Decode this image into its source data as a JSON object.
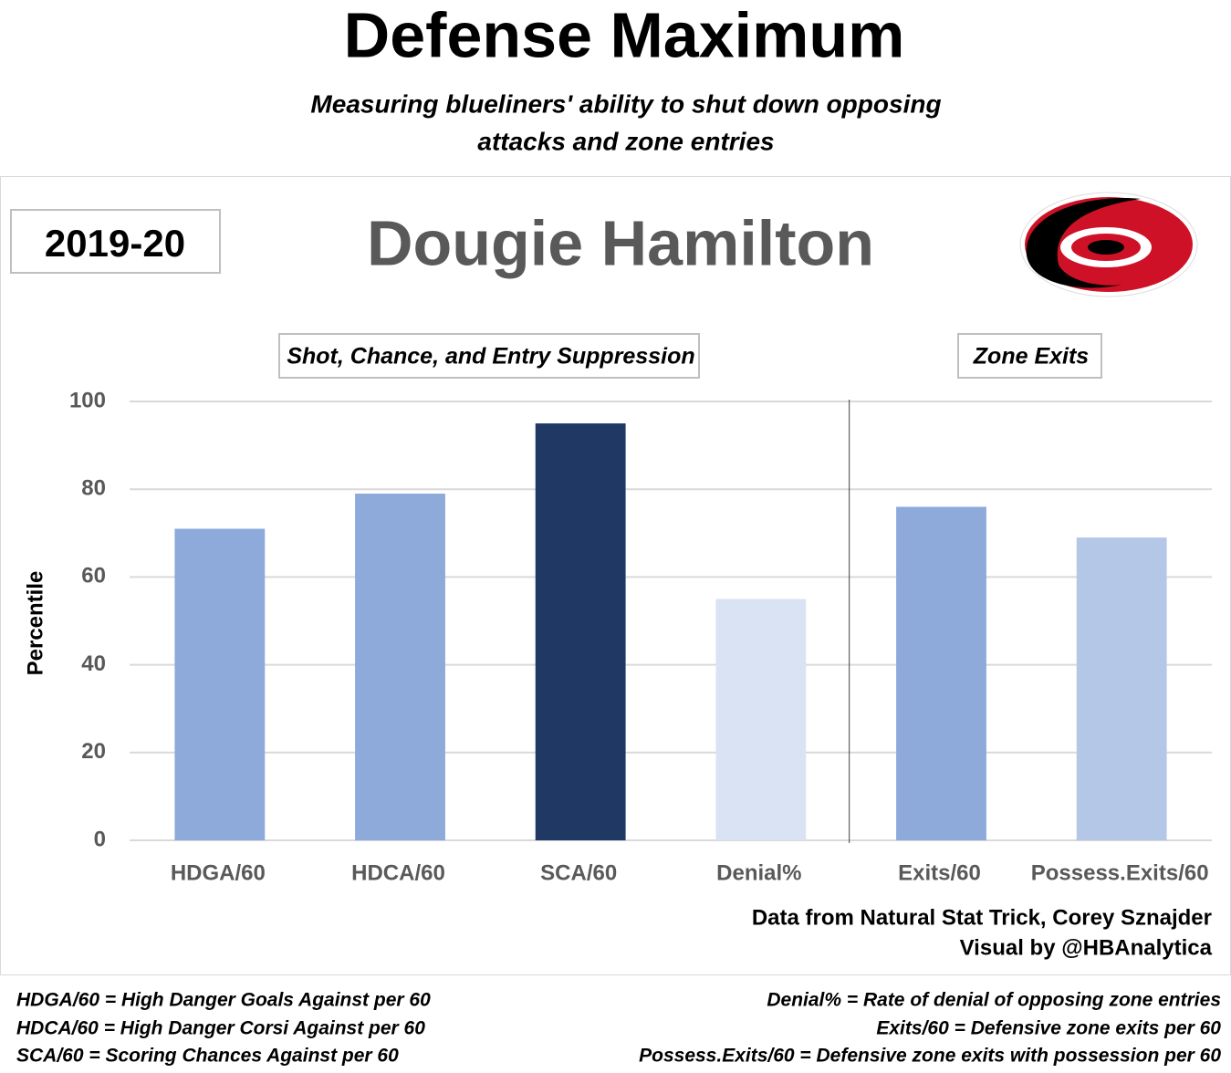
{
  "chart_data": {
    "type": "bar",
    "title": "Defense Maximum",
    "subtitle": [
      "Measuring blueliners' ability to shut down opposing",
      "attacks and zone entries"
    ],
    "season": "2019-20",
    "player": "Dougie Hamilton",
    "groups": [
      "Shot, Chance, and Entry Suppression",
      "Zone Exits"
    ],
    "ylabel": "Percentile",
    "categories": [
      "HDGA/60",
      "HDCA/60",
      "SCA/60",
      "Denial%",
      "Exits/60",
      "Possess.Exits/60"
    ],
    "values": [
      71,
      79,
      95,
      55,
      76,
      69
    ],
    "colors": [
      "#8eaadb",
      "#8eaadb",
      "#203864",
      "#dae3f3",
      "#8eaadb",
      "#b4c7e7"
    ],
    "ylim": [
      0,
      100
    ],
    "yticks": [
      0,
      20,
      40,
      60,
      80,
      100
    ],
    "grid": true,
    "source": [
      "Data from Natural Stat Trick, Corey Sznajder",
      "Visual by @HBAnalytica"
    ],
    "notes_left": [
      "HDGA/60 = High Danger Goals Against per 60",
      "HDCA/60 = High Danger Corsi Against per 60",
      "SCA/60 = Scoring Chances Against per  60"
    ],
    "notes_right": [
      "Denial% = Rate of denial of opposing zone entries",
      "Exits/60 = Defensive zone exits per 60",
      "Possess.Exits/60 = Defensive zone exits with possession per 60"
    ]
  }
}
